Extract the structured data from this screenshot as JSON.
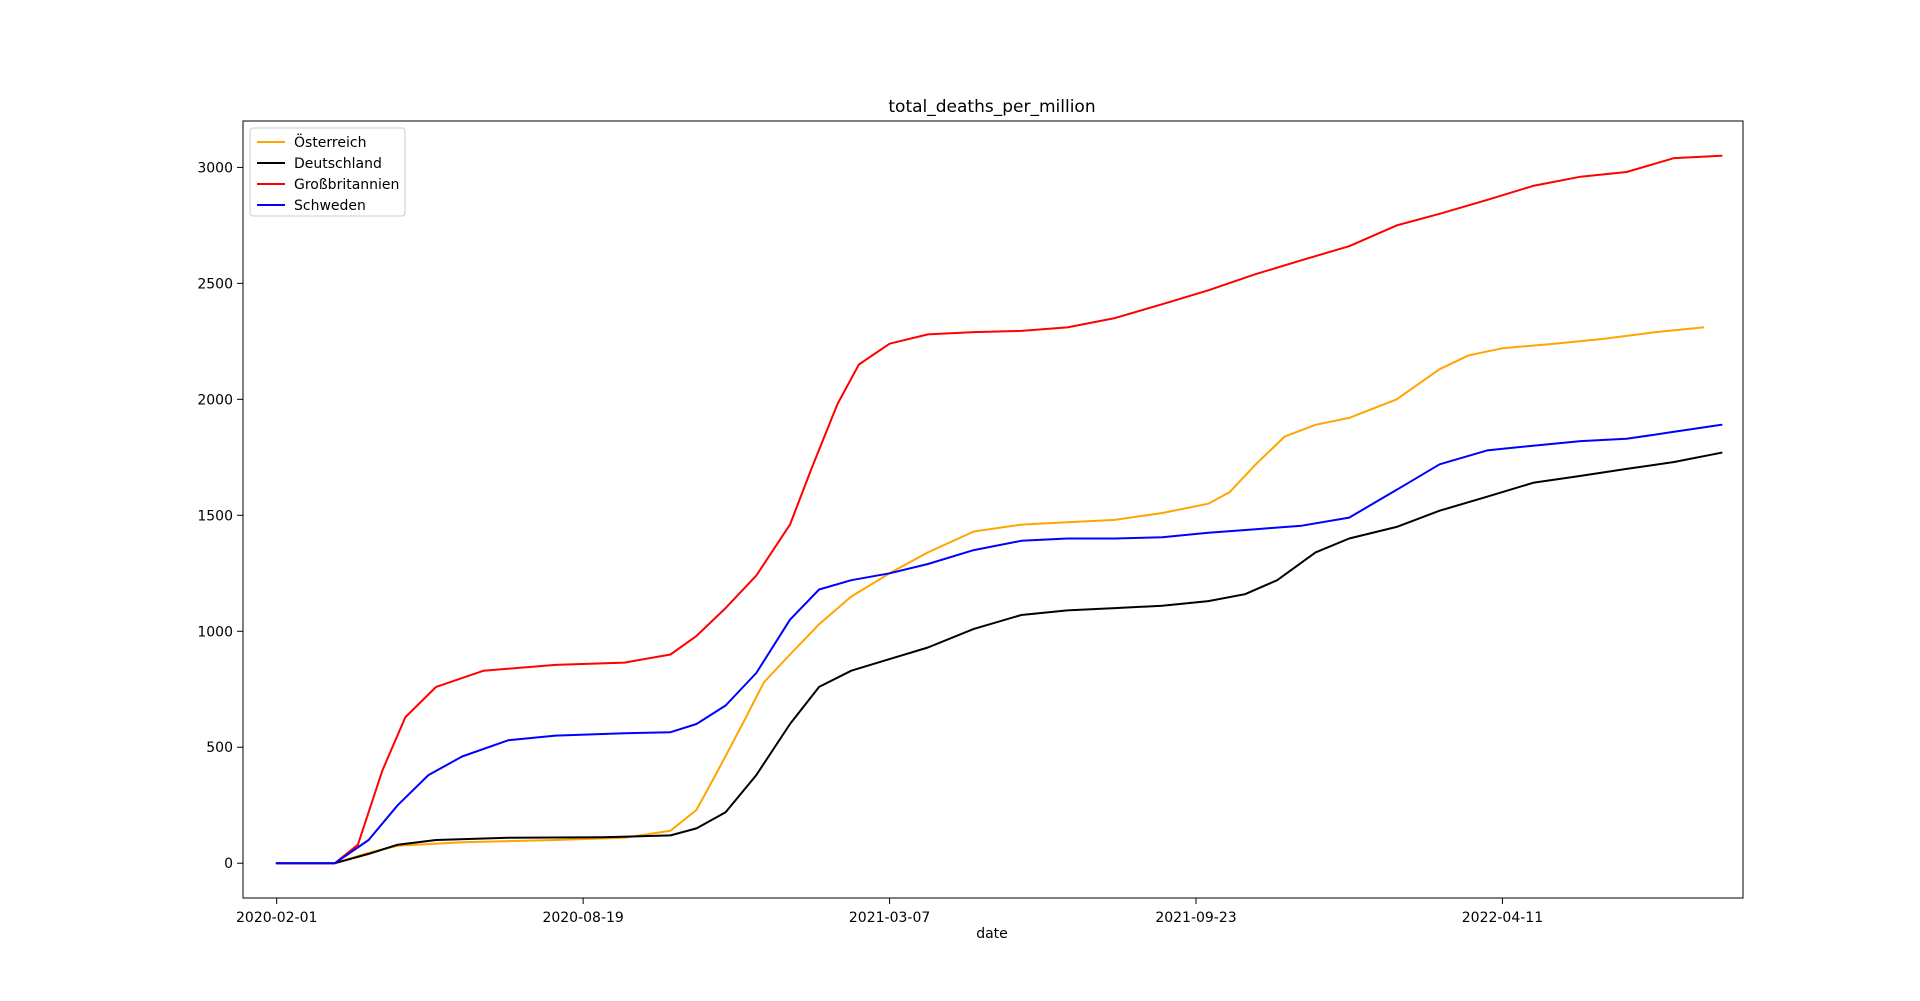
{
  "chart_data": {
    "type": "line",
    "title": "total_deaths_per_million",
    "xlabel": "date",
    "ylabel": "",
    "xlim": [
      "2020-01-10",
      "2022-09-15"
    ],
    "ylim": [
      -150,
      3200
    ],
    "xticks": [
      "2020-02-01",
      "2020-08-19",
      "2021-03-07",
      "2021-09-23",
      "2022-04-11"
    ],
    "yticks": [
      0,
      500,
      1000,
      1500,
      2000,
      2500,
      3000
    ],
    "grid": false,
    "legend_position": "top-left",
    "series": [
      {
        "name": "Österreich",
        "color": "#ffa500",
        "x": [
          "2020-02-01",
          "2020-03-10",
          "2020-04-01",
          "2020-04-20",
          "2020-06-01",
          "2020-08-01",
          "2020-09-15",
          "2020-10-15",
          "2020-11-01",
          "2020-11-15",
          "2020-12-01",
          "2020-12-15",
          "2021-01-01",
          "2021-01-20",
          "2021-02-10",
          "2021-03-07",
          "2021-04-01",
          "2021-05-01",
          "2021-06-01",
          "2021-07-01",
          "2021-08-01",
          "2021-09-01",
          "2021-10-01",
          "2021-10-15",
          "2021-11-01",
          "2021-11-20",
          "2021-12-10",
          "2022-01-01",
          "2022-02-01",
          "2022-03-01",
          "2022-03-20",
          "2022-04-11",
          "2022-05-15",
          "2022-06-15",
          "2022-07-20",
          "2022-08-20"
        ],
        "values": [
          0,
          0,
          45,
          75,
          90,
          100,
          110,
          140,
          230,
          400,
          600,
          780,
          900,
          1030,
          1150,
          1250,
          1340,
          1430,
          1460,
          1470,
          1480,
          1510,
          1550,
          1600,
          1720,
          1840,
          1890,
          1920,
          2000,
          2130,
          2190,
          2220,
          2240,
          2260,
          2290,
          2310
        ]
      },
      {
        "name": "Deutschland",
        "color": "#000000",
        "x": [
          "2020-02-01",
          "2020-03-10",
          "2020-04-01",
          "2020-04-20",
          "2020-05-15",
          "2020-07-01",
          "2020-09-01",
          "2020-10-15",
          "2020-11-01",
          "2020-11-20",
          "2020-12-10",
          "2021-01-01",
          "2021-01-20",
          "2021-02-10",
          "2021-03-07",
          "2021-04-01",
          "2021-05-01",
          "2021-06-01",
          "2021-07-01",
          "2021-08-01",
          "2021-09-01",
          "2021-10-01",
          "2021-10-25",
          "2021-11-15",
          "2021-12-10",
          "2022-01-01",
          "2022-02-01",
          "2022-03-01",
          "2022-04-01",
          "2022-05-01",
          "2022-06-01",
          "2022-07-01",
          "2022-08-01",
          "2022-09-01"
        ],
        "values": [
          0,
          0,
          40,
          80,
          100,
          110,
          112,
          120,
          150,
          220,
          380,
          600,
          760,
          830,
          880,
          930,
          1010,
          1070,
          1090,
          1100,
          1110,
          1130,
          1160,
          1220,
          1340,
          1400,
          1450,
          1520,
          1580,
          1640,
          1670,
          1700,
          1730,
          1770
        ]
      },
      {
        "name": "Großbritannien",
        "color": "#ff0000",
        "x": [
          "2020-02-01",
          "2020-03-10",
          "2020-03-25",
          "2020-04-10",
          "2020-04-25",
          "2020-05-15",
          "2020-06-15",
          "2020-08-01",
          "2020-09-15",
          "2020-10-15",
          "2020-11-01",
          "2020-11-20",
          "2020-12-10",
          "2021-01-01",
          "2021-01-15",
          "2021-02-01",
          "2021-02-15",
          "2021-03-07",
          "2021-04-01",
          "2021-05-01",
          "2021-06-01",
          "2021-07-01",
          "2021-08-01",
          "2021-09-01",
          "2021-10-01",
          "2021-11-01",
          "2021-12-01",
          "2022-01-01",
          "2022-02-01",
          "2022-03-01",
          "2022-04-01",
          "2022-05-01",
          "2022-06-01",
          "2022-07-01",
          "2022-08-01",
          "2022-09-01"
        ],
        "values": [
          0,
          0,
          80,
          400,
          630,
          760,
          830,
          855,
          865,
          900,
          980,
          1100,
          1240,
          1460,
          1700,
          1980,
          2150,
          2240,
          2280,
          2290,
          2295,
          2310,
          2350,
          2410,
          2470,
          2540,
          2600,
          2660,
          2750,
          2800,
          2860,
          2920,
          2960,
          2980,
          3040,
          3050
        ]
      },
      {
        "name": "Schweden",
        "color": "#0000ff",
        "x": [
          "2020-02-01",
          "2020-03-10",
          "2020-04-01",
          "2020-04-20",
          "2020-05-10",
          "2020-06-01",
          "2020-07-01",
          "2020-08-01",
          "2020-09-15",
          "2020-10-15",
          "2020-11-01",
          "2020-11-20",
          "2020-12-10",
          "2021-01-01",
          "2021-01-20",
          "2021-02-10",
          "2021-03-07",
          "2021-04-01",
          "2021-05-01",
          "2021-06-01",
          "2021-07-01",
          "2021-08-01",
          "2021-09-01",
          "2021-10-01",
          "2021-11-01",
          "2021-12-01",
          "2022-01-01",
          "2022-02-01",
          "2022-03-01",
          "2022-04-01",
          "2022-05-01",
          "2022-06-01",
          "2022-07-01",
          "2022-08-01",
          "2022-09-01"
        ],
        "values": [
          0,
          0,
          100,
          250,
          380,
          460,
          530,
          550,
          560,
          565,
          600,
          680,
          820,
          1050,
          1180,
          1220,
          1250,
          1290,
          1350,
          1390,
          1400,
          1400,
          1405,
          1425,
          1440,
          1455,
          1490,
          1610,
          1720,
          1780,
          1800,
          1820,
          1830,
          1860,
          1890
        ]
      }
    ]
  }
}
